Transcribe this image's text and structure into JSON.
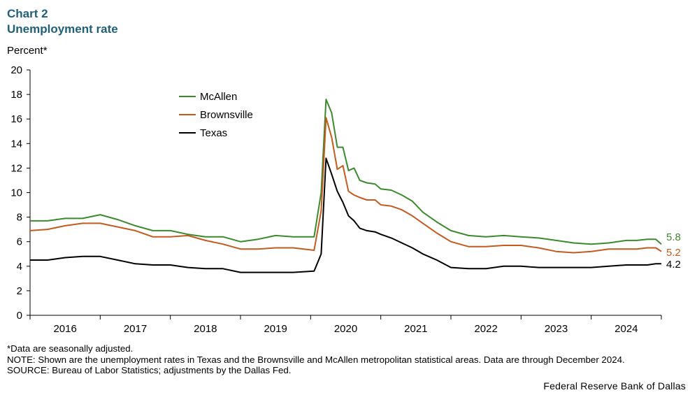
{
  "header": {
    "chart_label": "Chart 2",
    "title": "Unemployment rate"
  },
  "chart_data": {
    "type": "line",
    "ylabel": "Percent*",
    "ylim": [
      0,
      20
    ],
    "yticks": [
      0,
      2,
      4,
      6,
      8,
      10,
      12,
      14,
      16,
      18,
      20
    ],
    "x_start": 2015.5,
    "x_end": 2024.5,
    "xticks": [
      "2016",
      "2017",
      "2018",
      "2019",
      "2020",
      "2021",
      "2022",
      "2023",
      "2024"
    ],
    "legend_placement": "upper-left inside",
    "series": [
      {
        "name": "McAllen",
        "color": "#3c8a2e",
        "end_label": "5.8",
        "points": [
          [
            2015.5,
            7.7
          ],
          [
            2015.75,
            7.7
          ],
          [
            2016.0,
            7.9
          ],
          [
            2016.25,
            7.9
          ],
          [
            2016.5,
            8.2
          ],
          [
            2016.75,
            7.8
          ],
          [
            2017.0,
            7.3
          ],
          [
            2017.25,
            6.9
          ],
          [
            2017.5,
            6.9
          ],
          [
            2017.75,
            6.6
          ],
          [
            2018.0,
            6.4
          ],
          [
            2018.25,
            6.4
          ],
          [
            2018.5,
            6.0
          ],
          [
            2018.75,
            6.2
          ],
          [
            2019.0,
            6.5
          ],
          [
            2019.25,
            6.4
          ],
          [
            2019.55,
            6.4
          ],
          [
            2019.65,
            10.0
          ],
          [
            2019.72,
            17.6
          ],
          [
            2019.8,
            16.5
          ],
          [
            2019.88,
            13.7
          ],
          [
            2019.96,
            13.7
          ],
          [
            2020.04,
            11.8
          ],
          [
            2020.12,
            12.0
          ],
          [
            2020.2,
            11.0
          ],
          [
            2020.3,
            10.8
          ],
          [
            2020.42,
            10.7
          ],
          [
            2020.5,
            10.3
          ],
          [
            2020.65,
            10.2
          ],
          [
            2020.8,
            9.8
          ],
          [
            2020.95,
            9.3
          ],
          [
            2021.1,
            8.4
          ],
          [
            2021.3,
            7.6
          ],
          [
            2021.5,
            6.9
          ],
          [
            2021.75,
            6.5
          ],
          [
            2022.0,
            6.4
          ],
          [
            2022.25,
            6.5
          ],
          [
            2022.5,
            6.4
          ],
          [
            2022.75,
            6.3
          ],
          [
            2023.0,
            6.1
          ],
          [
            2023.25,
            5.9
          ],
          [
            2023.5,
            5.8
          ],
          [
            2023.75,
            5.9
          ],
          [
            2024.0,
            6.1
          ],
          [
            2024.15,
            6.1
          ],
          [
            2024.3,
            6.2
          ],
          [
            2024.42,
            6.2
          ],
          [
            2024.5,
            5.8
          ]
        ]
      },
      {
        "name": "Brownsville",
        "color": "#c55a1f",
        "end_label": "5.2",
        "points": [
          [
            2015.5,
            6.9
          ],
          [
            2015.75,
            7.0
          ],
          [
            2016.0,
            7.3
          ],
          [
            2016.25,
            7.5
          ],
          [
            2016.5,
            7.5
          ],
          [
            2016.75,
            7.2
          ],
          [
            2017.0,
            6.9
          ],
          [
            2017.25,
            6.4
          ],
          [
            2017.5,
            6.4
          ],
          [
            2017.75,
            6.5
          ],
          [
            2018.0,
            6.1
          ],
          [
            2018.25,
            5.8
          ],
          [
            2018.5,
            5.4
          ],
          [
            2018.75,
            5.4
          ],
          [
            2019.0,
            5.5
          ],
          [
            2019.25,
            5.5
          ],
          [
            2019.55,
            5.3
          ],
          [
            2019.65,
            8.5
          ],
          [
            2019.72,
            16.1
          ],
          [
            2019.8,
            14.5
          ],
          [
            2019.88,
            11.9
          ],
          [
            2019.96,
            12.2
          ],
          [
            2020.04,
            10.1
          ],
          [
            2020.12,
            9.8
          ],
          [
            2020.2,
            9.6
          ],
          [
            2020.3,
            9.4
          ],
          [
            2020.42,
            9.4
          ],
          [
            2020.5,
            9.0
          ],
          [
            2020.65,
            8.9
          ],
          [
            2020.8,
            8.6
          ],
          [
            2020.95,
            8.1
          ],
          [
            2021.1,
            7.5
          ],
          [
            2021.3,
            6.7
          ],
          [
            2021.5,
            6.0
          ],
          [
            2021.75,
            5.6
          ],
          [
            2022.0,
            5.6
          ],
          [
            2022.25,
            5.7
          ],
          [
            2022.5,
            5.7
          ],
          [
            2022.75,
            5.5
          ],
          [
            2023.0,
            5.2
          ],
          [
            2023.25,
            5.1
          ],
          [
            2023.5,
            5.2
          ],
          [
            2023.75,
            5.4
          ],
          [
            2024.0,
            5.4
          ],
          [
            2024.15,
            5.4
          ],
          [
            2024.3,
            5.5
          ],
          [
            2024.42,
            5.5
          ],
          [
            2024.5,
            5.2
          ]
        ]
      },
      {
        "name": "Texas",
        "color": "#000000",
        "end_label": "4.2",
        "points": [
          [
            2015.5,
            4.5
          ],
          [
            2015.75,
            4.5
          ],
          [
            2016.0,
            4.7
          ],
          [
            2016.25,
            4.8
          ],
          [
            2016.5,
            4.8
          ],
          [
            2016.75,
            4.5
          ],
          [
            2017.0,
            4.2
          ],
          [
            2017.25,
            4.1
          ],
          [
            2017.5,
            4.1
          ],
          [
            2017.75,
            3.9
          ],
          [
            2018.0,
            3.8
          ],
          [
            2018.25,
            3.8
          ],
          [
            2018.5,
            3.5
          ],
          [
            2018.75,
            3.5
          ],
          [
            2019.0,
            3.5
          ],
          [
            2019.25,
            3.5
          ],
          [
            2019.55,
            3.6
          ],
          [
            2019.65,
            5.0
          ],
          [
            2019.72,
            12.8
          ],
          [
            2019.8,
            11.5
          ],
          [
            2019.88,
            10.1
          ],
          [
            2019.96,
            9.2
          ],
          [
            2020.04,
            8.1
          ],
          [
            2020.12,
            7.7
          ],
          [
            2020.2,
            7.1
          ],
          [
            2020.3,
            6.9
          ],
          [
            2020.42,
            6.8
          ],
          [
            2020.5,
            6.6
          ],
          [
            2020.65,
            6.3
          ],
          [
            2020.8,
            5.9
          ],
          [
            2020.95,
            5.5
          ],
          [
            2021.1,
            5.0
          ],
          [
            2021.3,
            4.5
          ],
          [
            2021.5,
            3.9
          ],
          [
            2021.75,
            3.8
          ],
          [
            2022.0,
            3.8
          ],
          [
            2022.25,
            4.0
          ],
          [
            2022.5,
            4.0
          ],
          [
            2022.75,
            3.9
          ],
          [
            2023.0,
            3.9
          ],
          [
            2023.25,
            3.9
          ],
          [
            2023.5,
            3.9
          ],
          [
            2023.75,
            4.0
          ],
          [
            2024.0,
            4.1
          ],
          [
            2024.15,
            4.1
          ],
          [
            2024.3,
            4.1
          ],
          [
            2024.42,
            4.2
          ],
          [
            2024.5,
            4.2
          ]
        ]
      }
    ]
  },
  "notes": {
    "footnote": "*Data are seasonally adjusted.",
    "note": "NOTE: Shown are the unemployment rates in Texas and the Brownsville and McAllen metropolitan statistical areas. Data are through December 2024.",
    "source": "SOURCE: Bureau of Labor Statistics; adjustments by the Dallas Fed."
  },
  "credit": "Federal Reserve Bank of Dallas"
}
